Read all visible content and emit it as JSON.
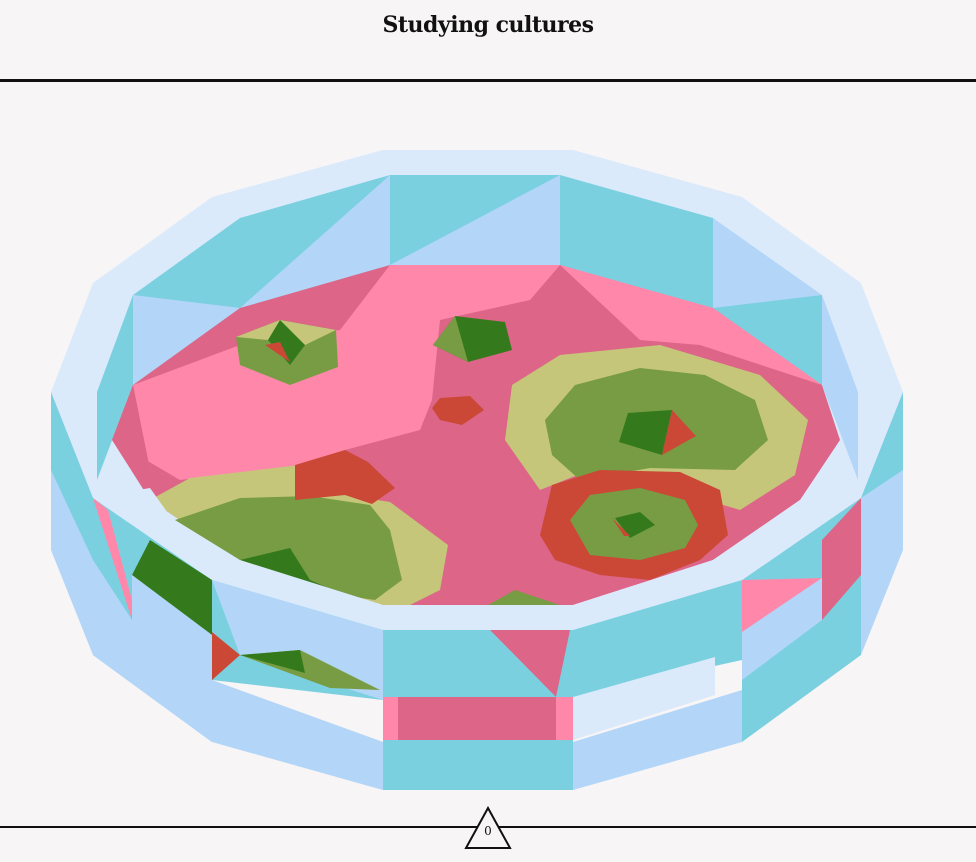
{
  "header": {
    "title": "Studying cultures"
  },
  "counter": {
    "value": "0",
    "icon": "triangle-icon"
  },
  "colors": {
    "background": "#f7f5f6",
    "rim_light": "#dbeafb",
    "wall_cyan": "#7bd0e0",
    "wall_blue": "#b3d5f8",
    "agar_pink": "#ff88aa",
    "agar_dark_pink": "#dc6588",
    "culture_yellow": "#c6c67a",
    "culture_olive": "#789c43",
    "culture_green": "#347a1c",
    "culture_red": "#cc4836"
  }
}
